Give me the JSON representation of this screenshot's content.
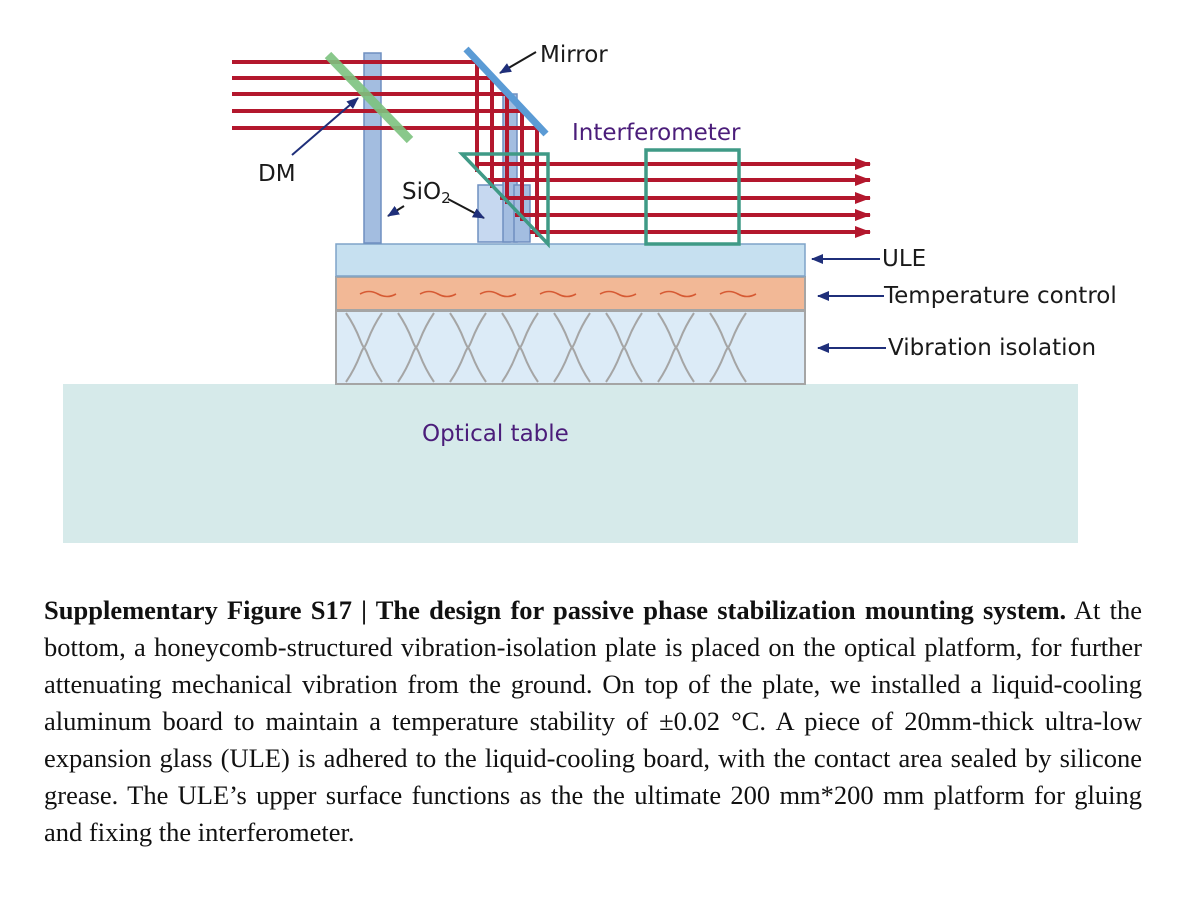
{
  "figure": {
    "labels": {
      "mirror": "Mirror",
      "interferometer": "Interferometer",
      "dm": "DM",
      "sio2": "SiO",
      "sio2_sub": "2",
      "ule": "ULE",
      "temperature_control": "Temperature control",
      "vibration_isolation": "Vibration isolation",
      "optical_table": "Optical table"
    },
    "colors": {
      "beam": "#b3172d",
      "post": "#a3bde0",
      "mirror": "#5b9bd5",
      "dichroic": "#7cc27e",
      "interferometer_frame": "#3f9a86",
      "ule": "#c6e0f0",
      "temperature": "#f2b896",
      "heater_wave": "#d65a33",
      "vibration": "#dcebf7",
      "honeycomb": "#a5a5a5",
      "table": "#d6eaea",
      "purple_text": "#4b1d7a",
      "arrow": "#1f2f7a"
    }
  },
  "caption": {
    "label": "Supplementary Figure S17 | The design for passive phase stabilization mounting system.",
    "body": "At the bottom, a honeycomb-structured vibration-isolation plate is placed on the optical platform, for further attenuating mechanical vibration from the ground. On top of the plate, we installed a liquid-cooling aluminum board to maintain a temperature stability of ±0.02 °C. A piece of 20mm-thick ultra-low expansion glass (ULE) is adhered to the liquid-cooling board, with the contact area sealed by silicone grease. The ULE’s upper surface functions as the the ultimate 200 mm*200 mm platform for gluing and fixing the interferometer."
  }
}
